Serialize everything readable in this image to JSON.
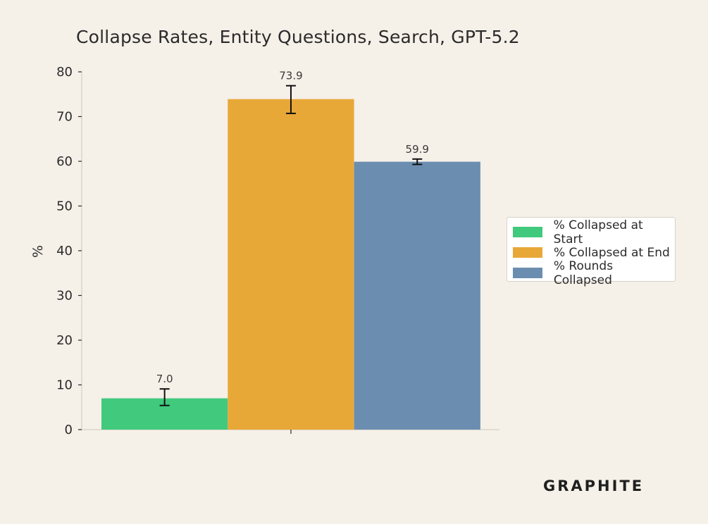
{
  "chart_data": {
    "type": "bar",
    "title": "Collapse Rates, Entity Questions, Search, GPT-5.2",
    "ylabel": "%",
    "xlabel": "",
    "ylim": [
      0,
      80
    ],
    "yticks": [
      0,
      10,
      20,
      30,
      40,
      50,
      60,
      70,
      80
    ],
    "grid": false,
    "legend_position": "right",
    "series": [
      {
        "name": "% Collapsed at Start",
        "value": 7.0,
        "label": "7.0",
        "error_low": 5.4,
        "error_high": 9.1,
        "color": "#41c97d"
      },
      {
        "name": "% Collapsed at End",
        "value": 73.9,
        "label": "73.9",
        "error_low": 70.7,
        "error_high": 76.9,
        "color": "#e8a838"
      },
      {
        "name": "% Rounds Collapsed",
        "value": 59.9,
        "label": "59.9",
        "error_low": 59.3,
        "error_high": 60.5,
        "color": "#6b8eb0"
      }
    ]
  },
  "brand": "GRAPHITE"
}
